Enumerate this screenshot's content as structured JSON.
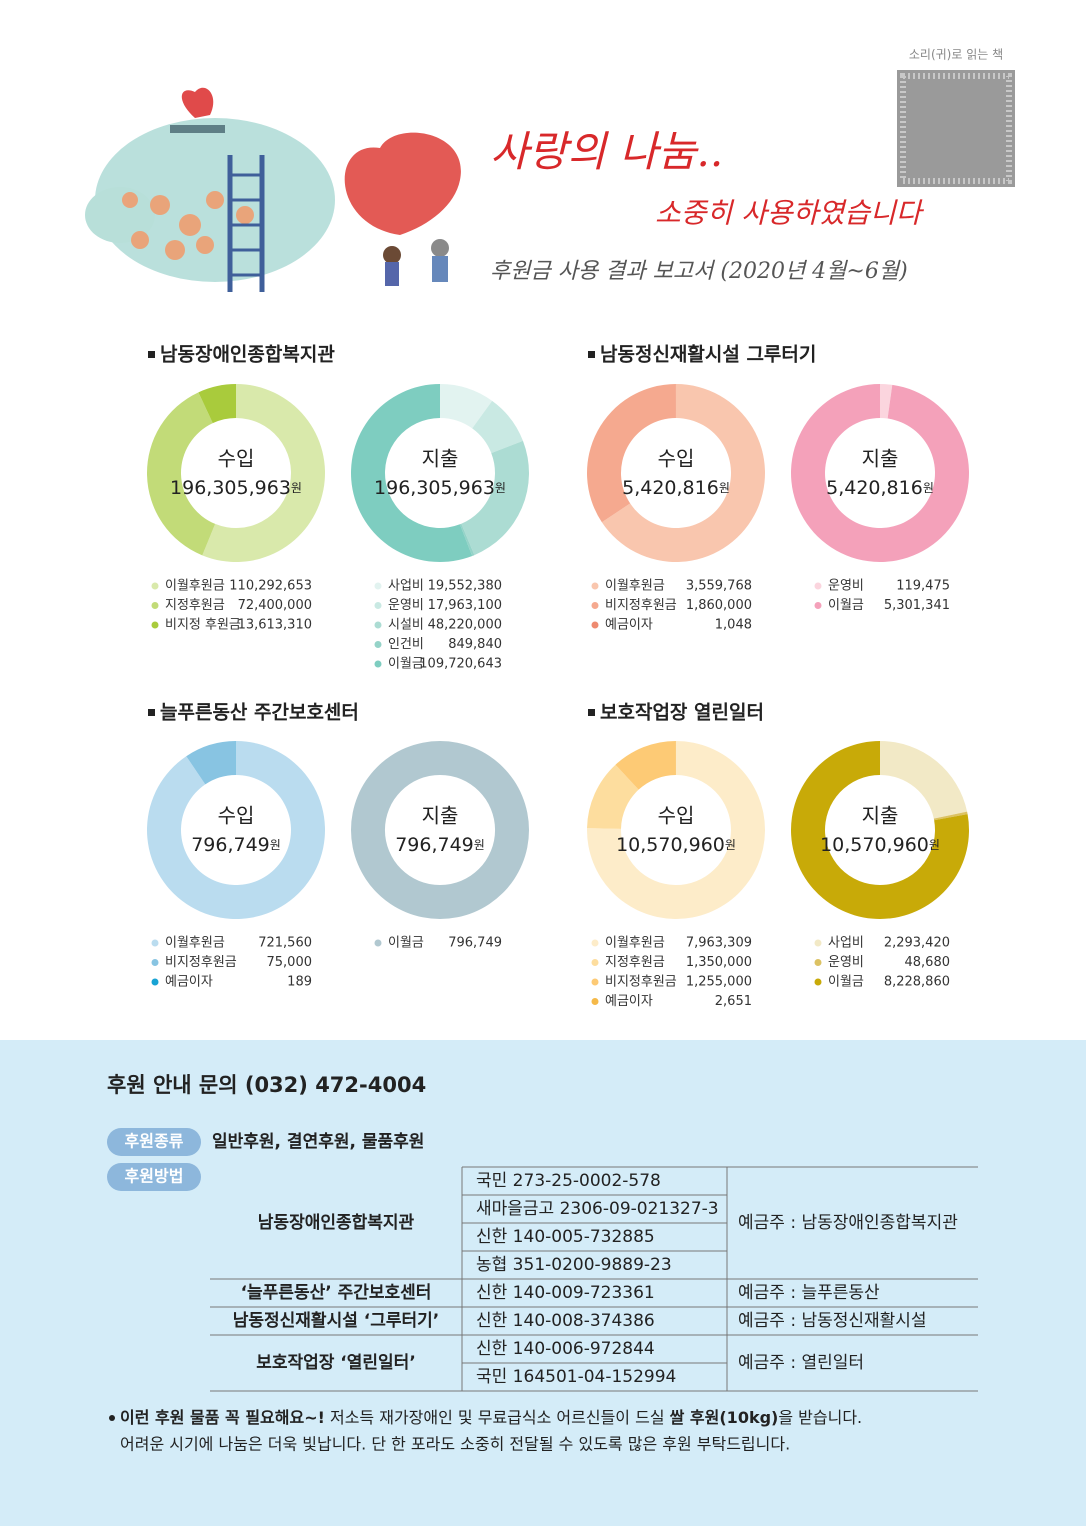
{
  "header": {
    "qr_label": "소리(귀)로 읽는 책",
    "title": "사랑의 나눔..",
    "subtitle": "소중히 사용하였습니다",
    "report": "후원금 사용 결과 보고서 (2020년 4월~6월)"
  },
  "sections": [
    "남동장애인종합복지관",
    "남동정신재활시설 그루터기",
    "늘푸른동산 주간보호센터",
    "보호작업장 열린일터"
  ],
  "chart_data": [
    {
      "type": "donut",
      "center_label": "수입",
      "total": "196,305,963",
      "unit": "원",
      "categories": [
        "이월후원금",
        "지정후원금",
        "비지정 후원금"
      ],
      "values": [
        110292653,
        72400000,
        13613310
      ],
      "value_labels": [
        "110,292,653",
        "72,400,000",
        "13,613,310"
      ],
      "colors": [
        "#d9e9ab",
        "#c2db78",
        "#a9cb3c"
      ]
    },
    {
      "type": "donut",
      "center_label": "지출",
      "total": "196,305,963",
      "unit": "원",
      "categories": [
        "사업비",
        "운영비",
        "시설비",
        "인건비",
        "이월금"
      ],
      "values": [
        19552380,
        17963100,
        48220000,
        849840,
        109720643
      ],
      "value_labels": [
        "19,552,380",
        "17,963,100",
        "48,220,000",
        "849,840",
        "109,720,643"
      ],
      "colors": [
        "#e2f3f0",
        "#c9e9e3",
        "#acdcd3",
        "#95d3c8",
        "#7ecdc0"
      ]
    },
    {
      "type": "donut",
      "center_label": "수입",
      "total": "5,420,816",
      "unit": "원",
      "categories": [
        "이월후원금",
        "비지정후원금",
        "예금이자"
      ],
      "values": [
        3559768,
        1860000,
        1048
      ],
      "value_labels": [
        "3,559,768",
        "1,860,000",
        "1,048"
      ],
      "colors": [
        "#f9c6ae",
        "#f5a98f",
        "#ee8a70"
      ]
    },
    {
      "type": "donut",
      "center_label": "지출",
      "total": "5,420,816",
      "unit": "원",
      "categories": [
        "운영비",
        "이월금"
      ],
      "values": [
        119475,
        5301341
      ],
      "value_labels": [
        "119,475",
        "5,301,341"
      ],
      "colors": [
        "#fbd5de",
        "#f4a1ba"
      ]
    },
    {
      "type": "donut",
      "center_label": "수입",
      "total": "796,749",
      "unit": "원",
      "categories": [
        "이월후원금",
        "비지정후원금",
        "예금이자"
      ],
      "values": [
        721560,
        75000,
        189
      ],
      "value_labels": [
        "721,560",
        "75,000",
        "189"
      ],
      "colors": [
        "#badcef",
        "#88c4e2",
        "#18a3d4"
      ]
    },
    {
      "type": "donut",
      "center_label": "지출",
      "total": "796,749",
      "unit": "원",
      "categories": [
        "이월금"
      ],
      "values": [
        796749
      ],
      "value_labels": [
        "796,749"
      ],
      "colors": [
        "#b1c8d0"
      ]
    },
    {
      "type": "donut",
      "center_label": "수입",
      "total": "10,570,960",
      "unit": "원",
      "categories": [
        "이월후원금",
        "지정후원금",
        "비지정후원금",
        "예금이자"
      ],
      "values": [
        7963309,
        1350000,
        1255000,
        2651
      ],
      "value_labels": [
        "7,963,309",
        "1,350,000",
        "1,255,000",
        "2,651"
      ],
      "colors": [
        "#fdecc9",
        "#fddd9e",
        "#fdca75",
        "#f5b949"
      ]
    },
    {
      "type": "donut",
      "center_label": "지출",
      "total": "10,570,960",
      "unit": "원",
      "categories": [
        "사업비",
        "운영비",
        "이월금"
      ],
      "values": [
        2293420,
        48680,
        8228860
      ],
      "value_labels": [
        "2,293,420",
        "48,680",
        "8,228,860"
      ],
      "colors": [
        "#f2e9c6",
        "#dcc263",
        "#c8aa08"
      ]
    }
  ],
  "support": {
    "contact": "후원 안내 문의 (032) 472-4004",
    "kind_label": "후원종류",
    "kinds": "일반후원, 결연후원, 물품후원",
    "method_label": "후원방법",
    "accounts": [
      {
        "org": "남동장애인종합복지관",
        "numbers": [
          "국민 273-25-0002-578",
          "새마을금고  2306-09-021327-3",
          "신한 140-005-732885",
          "농협 351-0200-9889-23"
        ],
        "holder": "예금주 : 남동장애인종합복지관"
      },
      {
        "org": "‘늘푸른동산’ 주간보호센터",
        "numbers": [
          "신한 140-009-723361"
        ],
        "holder": "예금주 : 늘푸른동산"
      },
      {
        "org": "남동정신재활시설 ‘그루터기’",
        "numbers": [
          "신한 140-008-374386"
        ],
        "holder": "예금주 : 남동정신재활시설"
      },
      {
        "org": "보호작업장 ‘열린일터’",
        "numbers": [
          "신한 140-006-972844",
          "국민 164501-04-152994"
        ],
        "holder": "예금주 : 열린일터"
      }
    ],
    "note": {
      "highlight": "이런 후원 물품 꼭 필요해요~!",
      "text1": " 저소득 재가장애인 및 무료급식소 어르신들이 드실 ",
      "highlight2": "쌀 후원(10kg)",
      "text2": "을 받습니다.",
      "line2": "어려운 시기에 나눔은 더욱 빛납니다. 단 한 포라도 소중히 전달될 수 있도록 많은 후원 부탁드립니다."
    }
  }
}
